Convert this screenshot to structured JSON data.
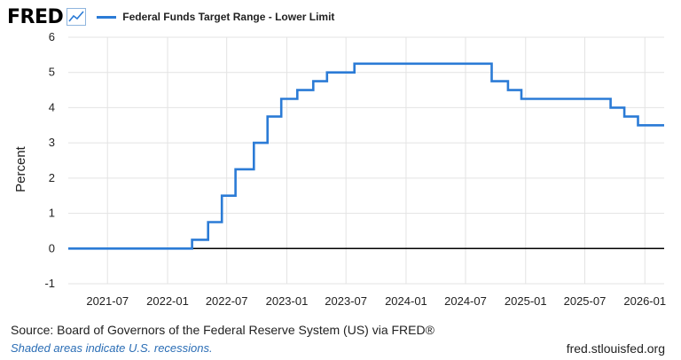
{
  "header": {
    "logo_text": "FRED",
    "logo_icon": "line-graph-icon",
    "series_label": "Federal Funds Target Range - Lower Limit"
  },
  "footer": {
    "source": "Source: Board of Governors of the Federal Reserve System (US) via FRED®",
    "shaded_note": "Shaded areas indicate U.S. recessions.",
    "url": "fred.stlouisfed.org"
  },
  "colors": {
    "series": "#2b7bd6",
    "grid": "#e3e3e3",
    "zero_line": "#000000",
    "link": "#2a6db5"
  },
  "chart_data": {
    "type": "line",
    "title": "",
    "xlabel": "",
    "ylabel": "Percent",
    "ylim": [
      -1,
      6
    ],
    "xlim": [
      "2021-03-03",
      "2026-03-01"
    ],
    "yticks": [
      -1,
      0,
      1,
      2,
      3,
      4,
      5,
      6
    ],
    "xticks": [
      "2021-07",
      "2022-01",
      "2022-07",
      "2023-01",
      "2023-07",
      "2024-01",
      "2024-07",
      "2025-01",
      "2025-07",
      "2026-01"
    ],
    "grid": true,
    "legend": "top-left",
    "series": [
      {
        "name": "Federal Funds Target Range - Lower Limit",
        "step": true,
        "points": [
          [
            "2021-03-03",
            0.0
          ],
          [
            "2022-03-17",
            0.25
          ],
          [
            "2022-05-05",
            0.75
          ],
          [
            "2022-06-16",
            1.5
          ],
          [
            "2022-07-28",
            2.25
          ],
          [
            "2022-09-22",
            3.0
          ],
          [
            "2022-11-03",
            3.75
          ],
          [
            "2022-12-15",
            4.25
          ],
          [
            "2023-02-02",
            4.5
          ],
          [
            "2023-03-23",
            4.75
          ],
          [
            "2023-05-04",
            5.0
          ],
          [
            "2023-07-27",
            5.25
          ],
          [
            "2024-09-19",
            4.75
          ],
          [
            "2024-11-08",
            4.5
          ],
          [
            "2024-12-19",
            4.25
          ],
          [
            "2025-09-18",
            4.0
          ],
          [
            "2025-10-30",
            3.75
          ],
          [
            "2025-12-11",
            3.5
          ],
          [
            "2026-03-01",
            3.5
          ]
        ]
      }
    ]
  }
}
